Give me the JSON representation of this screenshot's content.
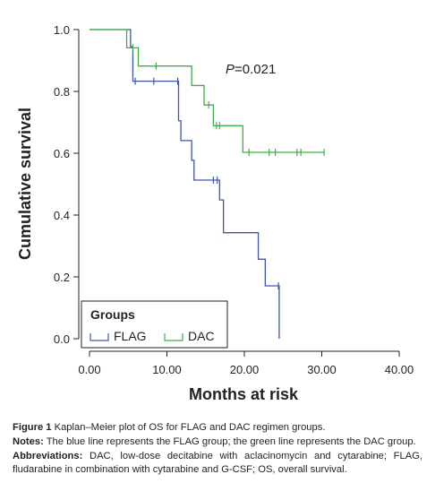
{
  "chart_data": {
    "type": "line",
    "step": true,
    "xlabel": "Months at risk",
    "ylabel": "Cumulative survival",
    "xlim": [
      0,
      40
    ],
    "ylim": [
      0,
      1
    ],
    "x_ticks": [
      "0.00",
      "10.00",
      "20.00",
      "30.00",
      "40.00"
    ],
    "y_ticks": [
      "0.0",
      "0.2",
      "0.4",
      "0.6",
      "0.8",
      "1.0"
    ],
    "annotation": {
      "italic": "P",
      "text": "=0.021"
    },
    "legend": {
      "title": "Groups",
      "position": "bottom-left"
    },
    "grid": false,
    "series": [
      {
        "name": "FLAG",
        "color": "#3d57a6",
        "steps": [
          [
            0,
            1.0
          ],
          [
            5.3,
            0.944
          ],
          [
            5.6,
            0.833
          ],
          [
            11.5,
            0.705
          ],
          [
            11.8,
            0.641
          ],
          [
            13.2,
            0.577
          ],
          [
            13.5,
            0.513
          ],
          [
            16.8,
            0.449
          ],
          [
            17.3,
            0.343
          ],
          [
            21.8,
            0.257
          ],
          [
            22.7,
            0.171
          ],
          [
            24.5,
            0.0
          ]
        ],
        "end_x": 24.5,
        "censored": [
          [
            5.9,
            0.833
          ],
          [
            8.3,
            0.833
          ],
          [
            11.4,
            0.833
          ],
          [
            16.0,
            0.513
          ],
          [
            16.5,
            0.513
          ],
          [
            24.4,
            0.171
          ]
        ]
      },
      {
        "name": "DAC",
        "color": "#3fae49",
        "steps": [
          [
            0,
            1.0
          ],
          [
            4.8,
            0.941
          ],
          [
            6.3,
            0.882
          ],
          [
            13.2,
            0.819
          ],
          [
            14.8,
            0.756
          ],
          [
            16.0,
            0.689
          ],
          [
            19.8,
            0.603
          ]
        ],
        "end_x": 30.3,
        "censored": [
          [
            5.6,
            0.941
          ],
          [
            8.6,
            0.882
          ],
          [
            15.4,
            0.756
          ],
          [
            16.4,
            0.689
          ],
          [
            16.8,
            0.689
          ],
          [
            20.6,
            0.603
          ],
          [
            23.2,
            0.603
          ],
          [
            24.0,
            0.603
          ],
          [
            26.8,
            0.603
          ],
          [
            27.3,
            0.603
          ],
          [
            30.3,
            0.603
          ]
        ]
      }
    ]
  },
  "caption": {
    "figure_label": "Figure 1",
    "figure_text": "Kaplan–Meier plot of OS for FLAG and DAC regimen groups.",
    "notes_label": "Notes:",
    "notes_text": "The blue line represents the FLAG group; the green line represents the DAC group.",
    "abbrev_label": "Abbreviations:",
    "abbrev_text": "DAC, low-dose decitabine with aclacinomycin and cytarabine; FLAG, fludarabine in combination with cytarabine and G-CSF; OS, overall survival."
  }
}
